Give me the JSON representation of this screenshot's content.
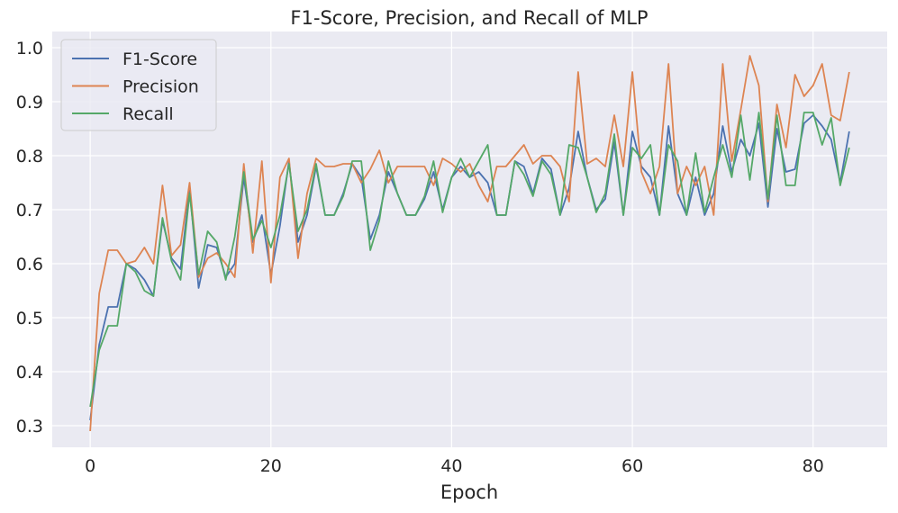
{
  "chart_data": {
    "type": "line",
    "title": "F1-Score, Precision, and Recall of MLP",
    "xlabel": "Epoch",
    "ylabel": "",
    "xlim": [
      -4.2,
      88.2
    ],
    "ylim": [
      0.26,
      1.03
    ],
    "xticks": [
      0,
      20,
      40,
      60,
      80
    ],
    "yticks": [
      0.3,
      0.4,
      0.5,
      0.6,
      0.7,
      0.8,
      0.9,
      1.0
    ],
    "ytick_labels": [
      "0.3",
      "0.4",
      "0.5",
      "0.6",
      "0.7",
      "0.8",
      "0.9",
      "1.0"
    ],
    "grid": true,
    "legend_position": "top-left",
    "background": "#eaeaf2",
    "x": [
      0,
      1,
      2,
      3,
      4,
      5,
      6,
      7,
      8,
      9,
      10,
      11,
      12,
      13,
      14,
      15,
      16,
      17,
      18,
      19,
      20,
      21,
      22,
      23,
      24,
      25,
      26,
      27,
      28,
      29,
      30,
      31,
      32,
      33,
      34,
      35,
      36,
      37,
      38,
      39,
      40,
      41,
      42,
      43,
      44,
      45,
      46,
      47,
      48,
      49,
      50,
      51,
      52,
      53,
      54,
      55,
      56,
      57,
      58,
      59,
      60,
      61,
      62,
      63,
      64,
      65,
      66,
      67,
      68,
      69,
      70,
      71,
      72,
      73,
      74,
      75,
      76,
      77,
      78,
      79,
      80,
      81,
      82,
      83,
      84
    ],
    "series": [
      {
        "name": "F1-Score",
        "color": "#4c72b0",
        "values": [
          0.31,
          0.45,
          0.52,
          0.52,
          0.6,
          0.59,
          0.57,
          0.54,
          0.68,
          0.61,
          0.59,
          0.74,
          0.555,
          0.635,
          0.63,
          0.575,
          0.6,
          0.76,
          0.64,
          0.69,
          0.58,
          0.67,
          0.79,
          0.64,
          0.69,
          0.78,
          0.69,
          0.69,
          0.73,
          0.785,
          0.76,
          0.645,
          0.69,
          0.77,
          0.73,
          0.69,
          0.69,
          0.72,
          0.77,
          0.7,
          0.76,
          0.78,
          0.76,
          0.77,
          0.75,
          0.69,
          0.69,
          0.79,
          0.78,
          0.73,
          0.795,
          0.775,
          0.69,
          0.74,
          0.845,
          0.76,
          0.7,
          0.72,
          0.825,
          0.69,
          0.845,
          0.78,
          0.76,
          0.69,
          0.855,
          0.73,
          0.69,
          0.76,
          0.69,
          0.73,
          0.855,
          0.77,
          0.83,
          0.8,
          0.86,
          0.705,
          0.85,
          0.77,
          0.775,
          0.86,
          0.875,
          0.855,
          0.83,
          0.75,
          0.845
        ]
      },
      {
        "name": "Precision",
        "color": "#dd8452",
        "values": [
          0.29,
          0.545,
          0.625,
          0.625,
          0.6,
          0.605,
          0.63,
          0.6,
          0.745,
          0.615,
          0.635,
          0.75,
          0.575,
          0.61,
          0.62,
          0.6,
          0.575,
          0.785,
          0.62,
          0.79,
          0.565,
          0.76,
          0.795,
          0.61,
          0.73,
          0.795,
          0.78,
          0.78,
          0.785,
          0.785,
          0.75,
          0.775,
          0.81,
          0.75,
          0.78,
          0.78,
          0.78,
          0.78,
          0.745,
          0.795,
          0.785,
          0.77,
          0.785,
          0.745,
          0.715,
          0.78,
          0.78,
          0.8,
          0.82,
          0.785,
          0.8,
          0.8,
          0.78,
          0.715,
          0.955,
          0.785,
          0.795,
          0.78,
          0.875,
          0.78,
          0.955,
          0.77,
          0.73,
          0.78,
          0.97,
          0.73,
          0.78,
          0.745,
          0.78,
          0.69,
          0.97,
          0.79,
          0.885,
          0.985,
          0.93,
          0.715,
          0.895,
          0.815,
          0.95,
          0.91,
          0.93,
          0.97,
          0.875,
          0.865,
          0.955
        ]
      },
      {
        "name": "Recall",
        "color": "#55a868",
        "values": [
          0.335,
          0.44,
          0.485,
          0.485,
          0.6,
          0.585,
          0.55,
          0.54,
          0.685,
          0.605,
          0.57,
          0.73,
          0.58,
          0.66,
          0.64,
          0.57,
          0.65,
          0.77,
          0.645,
          0.68,
          0.63,
          0.69,
          0.785,
          0.66,
          0.7,
          0.785,
          0.69,
          0.69,
          0.725,
          0.79,
          0.79,
          0.625,
          0.68,
          0.79,
          0.73,
          0.69,
          0.69,
          0.725,
          0.79,
          0.695,
          0.76,
          0.795,
          0.76,
          0.79,
          0.82,
          0.69,
          0.69,
          0.79,
          0.765,
          0.725,
          0.79,
          0.765,
          0.69,
          0.82,
          0.815,
          0.76,
          0.695,
          0.73,
          0.84,
          0.69,
          0.815,
          0.795,
          0.82,
          0.69,
          0.82,
          0.79,
          0.69,
          0.805,
          0.695,
          0.76,
          0.82,
          0.76,
          0.875,
          0.755,
          0.88,
          0.72,
          0.875,
          0.745,
          0.745,
          0.88,
          0.88,
          0.82,
          0.87,
          0.745,
          0.815
        ]
      }
    ]
  }
}
